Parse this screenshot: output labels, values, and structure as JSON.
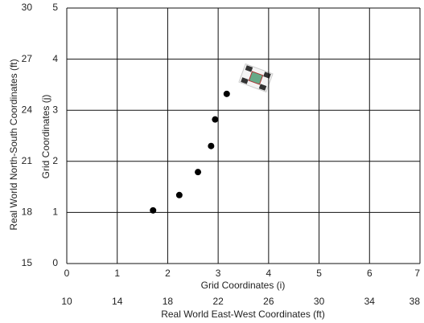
{
  "chart_data": {
    "type": "scatter",
    "x": [
      1.71,
      2.23,
      2.6,
      2.86,
      2.94,
      3.17
    ],
    "values": [
      1.04,
      1.34,
      1.79,
      2.3,
      2.82,
      3.32
    ],
    "color": "#000000",
    "xlim": [
      0,
      7
    ],
    "xticks": [
      0,
      1,
      2,
      3,
      4,
      5,
      6,
      7
    ],
    "ylim": [
      0,
      5
    ],
    "yticks": [
      0,
      1,
      2,
      3,
      4,
      5
    ],
    "x2lim": [
      10,
      38
    ],
    "x2ticks": [
      10,
      14,
      18,
      22,
      26,
      30,
      34,
      38
    ],
    "y2lim": [
      15,
      30
    ],
    "y2ticks": [
      15,
      18,
      21,
      24,
      27,
      30
    ],
    "xlabel": "Grid Coordinates (i)",
    "x2label": "Real World East-West Coordinates (ft)",
    "ylabel": "Grid Coordinates (j)",
    "y2label": "Real World North-South Coordinates (ft)",
    "grid": true
  }
}
